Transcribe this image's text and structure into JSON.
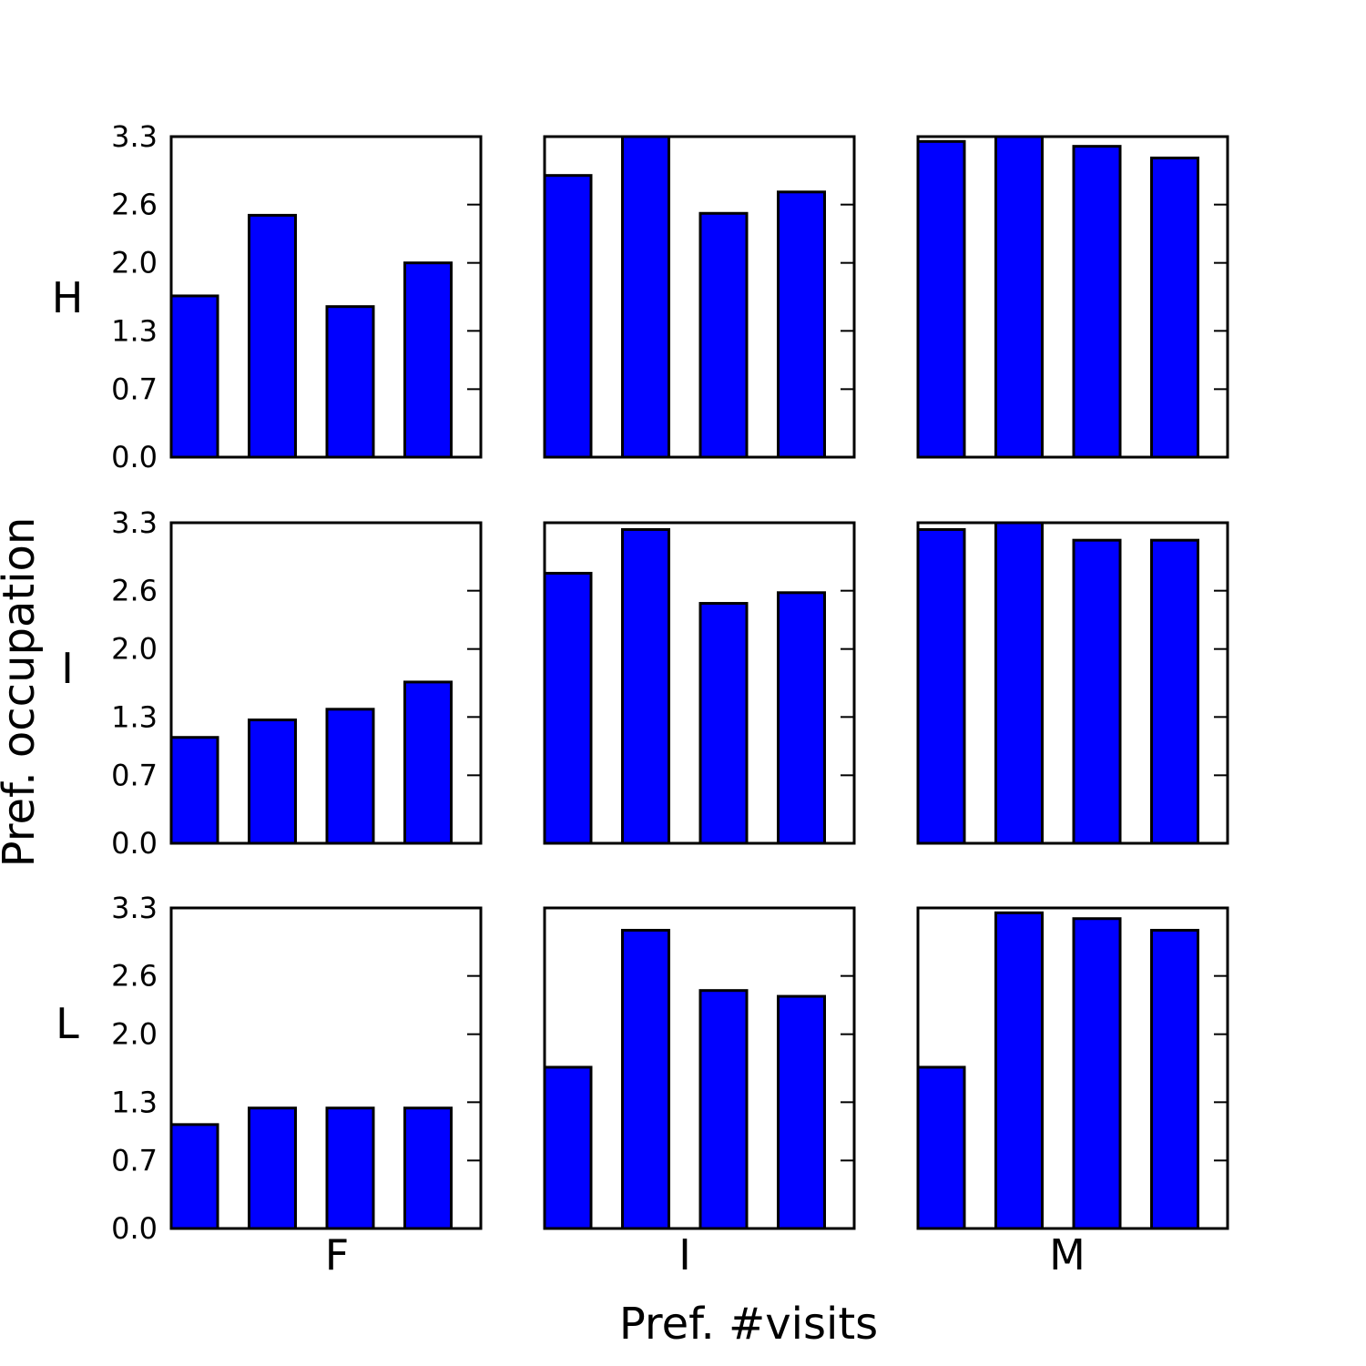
{
  "chart_data": {
    "type": "bar",
    "xlabel": "Pref. #visits",
    "ylabel": "Pref. occupation",
    "row_labels": [
      "H",
      "I",
      "L"
    ],
    "col_labels": [
      "F",
      "I",
      "M"
    ],
    "ylim": [
      0,
      3.3
    ],
    "yticks": [
      0.0,
      0.7,
      1.3,
      2.0,
      2.6,
      3.3
    ],
    "ytick_labels": [
      "0.0",
      "0.7",
      "1.3",
      "2.0",
      "2.6",
      "3.3"
    ],
    "bars_per_panel": 4,
    "bar_color": "#0000ff",
    "grid": false,
    "panels": [
      [
        {
          "values": [
            1.66,
            2.49,
            1.55,
            2.0
          ]
        },
        {
          "values": [
            2.9,
            3.3,
            2.51,
            2.73
          ]
        },
        {
          "values": [
            3.25,
            3.3,
            3.2,
            3.08
          ]
        }
      ],
      [
        {
          "values": [
            1.09,
            1.27,
            1.38,
            1.66
          ]
        },
        {
          "values": [
            2.78,
            3.23,
            2.47,
            2.58
          ]
        },
        {
          "values": [
            3.23,
            3.3,
            3.12,
            3.12
          ]
        }
      ],
      [
        {
          "values": [
            1.07,
            1.24,
            1.24,
            1.24
          ]
        },
        {
          "values": [
            1.66,
            3.07,
            2.45,
            2.39
          ]
        },
        {
          "values": [
            1.66,
            3.25,
            3.19,
            3.07
          ]
        }
      ]
    ]
  }
}
